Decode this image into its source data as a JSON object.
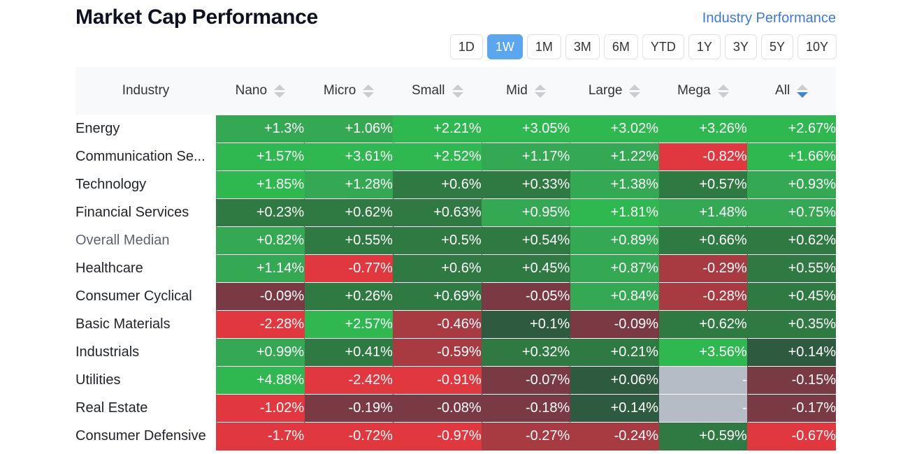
{
  "title": "Market Cap Performance",
  "industry_link": "Industry Performance",
  "periods": [
    "1D",
    "1W",
    "1M",
    "3M",
    "6M",
    "YTD",
    "1Y",
    "3Y",
    "5Y",
    "10Y"
  ],
  "active_period": "1W",
  "columns": [
    "Industry",
    "Nano",
    "Micro",
    "Small",
    "Mid",
    "Large",
    "Mega",
    "All"
  ],
  "sorted_column": "All",
  "sort_direction": "descending",
  "rows": [
    {
      "name": "Energy",
      "values": [
        "+1.3%",
        "+1.06%",
        "+2.21%",
        "+3.05%",
        "+3.02%",
        "+3.26%",
        "+2.67%"
      ]
    },
    {
      "name": "Communication Se...",
      "values": [
        "+1.57%",
        "+3.61%",
        "+2.52%",
        "+1.17%",
        "+1.22%",
        "-0.82%",
        "+1.66%"
      ]
    },
    {
      "name": "Technology",
      "values": [
        "+1.85%",
        "+1.28%",
        "+0.6%",
        "+0.33%",
        "+1.38%",
        "+0.57%",
        "+0.93%"
      ]
    },
    {
      "name": "Financial Services",
      "values": [
        "+0.23%",
        "+0.62%",
        "+0.63%",
        "+0.95%",
        "+1.81%",
        "+1.48%",
        "+0.75%"
      ]
    },
    {
      "name": "Overall Median",
      "values": [
        "+0.82%",
        "+0.55%",
        "+0.5%",
        "+0.54%",
        "+0.89%",
        "+0.66%",
        "+0.62%"
      ]
    },
    {
      "name": "Healthcare",
      "values": [
        "+1.14%",
        "-0.77%",
        "+0.6%",
        "+0.45%",
        "+0.87%",
        "-0.29%",
        "+0.55%"
      ]
    },
    {
      "name": "Consumer Cyclical",
      "values": [
        "-0.09%",
        "+0.26%",
        "+0.69%",
        "-0.05%",
        "+0.84%",
        "-0.28%",
        "+0.45%"
      ]
    },
    {
      "name": "Basic Materials",
      "values": [
        "-2.28%",
        "+2.57%",
        "-0.46%",
        "+0.1%",
        "-0.09%",
        "+0.62%",
        "+0.35%"
      ]
    },
    {
      "name": "Industrials",
      "values": [
        "+0.99%",
        "+0.41%",
        "-0.59%",
        "+0.32%",
        "+0.21%",
        "+3.56%",
        "+0.14%"
      ]
    },
    {
      "name": "Utilities",
      "values": [
        "+4.88%",
        "-2.42%",
        "-0.91%",
        "-0.07%",
        "+0.06%",
        "-",
        "-0.15%"
      ]
    },
    {
      "name": "Real Estate",
      "values": [
        "-1.02%",
        "-0.19%",
        "-0.08%",
        "-0.18%",
        "+0.14%",
        "-",
        "-0.17%"
      ]
    },
    {
      "name": "Consumer Defensive",
      "values": [
        "-1.7%",
        "-0.72%",
        "-0.97%",
        "-0.27%",
        "-0.24%",
        "+0.59%",
        "-0.67%"
      ]
    }
  ],
  "colors": {
    "strong_positive": "#2eb84f",
    "mid_positive": "#34a853",
    "weak_positive": "#2f7a42",
    "near_zero_positive": "#2e5a3f",
    "near_zero_negative": "#7a3a44",
    "weak_negative": "#a83a42",
    "strong_negative": "#e0383e",
    "no_data": "#b5bcc5",
    "accent": "#5aa7f0",
    "link": "#3b78e7"
  }
}
